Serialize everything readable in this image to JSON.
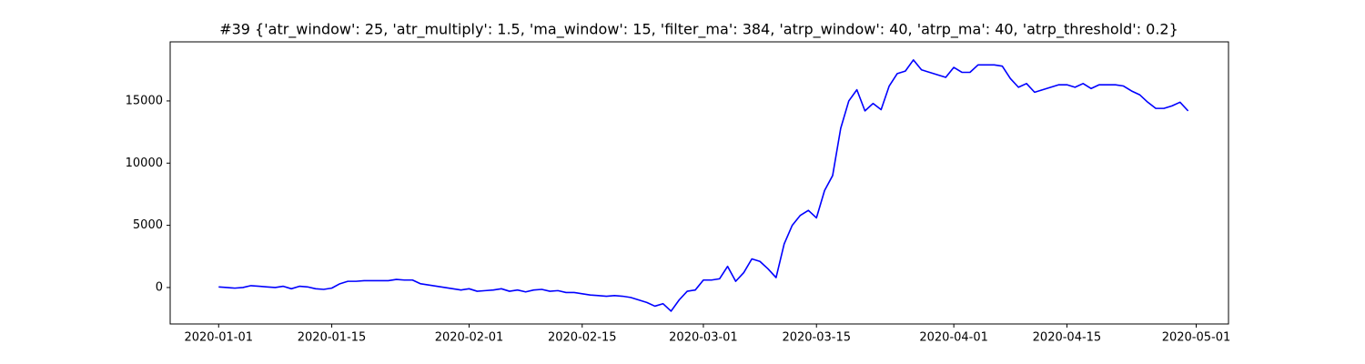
{
  "chart_data": {
    "type": "line",
    "title": "#39 {'atr_window': 25, 'atr_multiply': 1.5, 'ma_window': 15, 'filter_ma': 384, 'atrp_window': 40, 'atrp_ma': 40, 'atrp_threshold': 0.2}",
    "x": [
      "2020-01-01",
      "2020-01-02",
      "2020-01-03",
      "2020-01-04",
      "2020-01-05",
      "2020-01-06",
      "2020-01-07",
      "2020-01-08",
      "2020-01-09",
      "2020-01-10",
      "2020-01-11",
      "2020-01-12",
      "2020-01-13",
      "2020-01-14",
      "2020-01-15",
      "2020-01-16",
      "2020-01-17",
      "2020-01-18",
      "2020-01-19",
      "2020-01-20",
      "2020-01-21",
      "2020-01-22",
      "2020-01-23",
      "2020-01-24",
      "2020-01-25",
      "2020-01-26",
      "2020-01-27",
      "2020-01-28",
      "2020-01-29",
      "2020-01-30",
      "2020-01-31",
      "2020-02-01",
      "2020-02-02",
      "2020-02-03",
      "2020-02-04",
      "2020-02-05",
      "2020-02-06",
      "2020-02-07",
      "2020-02-08",
      "2020-02-09",
      "2020-02-10",
      "2020-02-11",
      "2020-02-12",
      "2020-02-13",
      "2020-02-14",
      "2020-02-15",
      "2020-02-16",
      "2020-02-17",
      "2020-02-18",
      "2020-02-19",
      "2020-02-20",
      "2020-02-21",
      "2020-02-22",
      "2020-02-23",
      "2020-02-24",
      "2020-02-25",
      "2020-02-26",
      "2020-02-27",
      "2020-02-28",
      "2020-02-29",
      "2020-03-01",
      "2020-03-02",
      "2020-03-03",
      "2020-03-04",
      "2020-03-05",
      "2020-03-06",
      "2020-03-07",
      "2020-03-08",
      "2020-03-09",
      "2020-03-10",
      "2020-03-11",
      "2020-03-12",
      "2020-03-13",
      "2020-03-14",
      "2020-03-15",
      "2020-03-16",
      "2020-03-17",
      "2020-03-18",
      "2020-03-19",
      "2020-03-20",
      "2020-03-21",
      "2020-03-22",
      "2020-03-23",
      "2020-03-24",
      "2020-03-25",
      "2020-03-26",
      "2020-03-27",
      "2020-03-28",
      "2020-03-29",
      "2020-03-30",
      "2020-03-31",
      "2020-04-01",
      "2020-04-02",
      "2020-04-03",
      "2020-04-04",
      "2020-04-05",
      "2020-04-06",
      "2020-04-07",
      "2020-04-08",
      "2020-04-09",
      "2020-04-10",
      "2020-04-11",
      "2020-04-12",
      "2020-04-13",
      "2020-04-14",
      "2020-04-15",
      "2020-04-16",
      "2020-04-17",
      "2020-04-18",
      "2020-04-19",
      "2020-04-20",
      "2020-04-21",
      "2020-04-22",
      "2020-04-23",
      "2020-04-24",
      "2020-04-25",
      "2020-04-26",
      "2020-04-27",
      "2020-04-28",
      "2020-04-29",
      "2020-04-30"
    ],
    "values": [
      50,
      0,
      -50,
      0,
      150,
      100,
      50,
      0,
      100,
      -100,
      100,
      50,
      -100,
      -150,
      -50,
      300,
      500,
      500,
      550,
      550,
      550,
      550,
      650,
      600,
      600,
      300,
      200,
      100,
      0,
      -100,
      -200,
      -100,
      -300,
      -250,
      -200,
      -100,
      -300,
      -200,
      -350,
      -200,
      -150,
      -300,
      -250,
      -400,
      -400,
      -500,
      -600,
      -650,
      -700,
      -650,
      -700,
      -800,
      -1000,
      -1200,
      -1500,
      -1300,
      -1900,
      -1000,
      -300,
      -200,
      600,
      600,
      700,
      1700,
      500,
      1200,
      2300,
      2100,
      1500,
      800,
      3500,
      5000,
      5800,
      6200,
      5600,
      7800,
      9000,
      12800,
      15000,
      15900,
      14200,
      14800,
      14300,
      16200,
      17200,
      17400,
      18300,
      17500,
      17300,
      17100,
      16900,
      17700,
      17300,
      17300,
      17900,
      17900,
      17900,
      17800,
      16800,
      16100,
      16400,
      15700,
      15900,
      16100,
      16300,
      16300,
      16100,
      16400,
      16000,
      16300,
      16300,
      16300,
      16200,
      15800,
      15500,
      14900,
      14400,
      14400,
      14600,
      14900,
      14200
    ],
    "color": "#0000ff",
    "xlim": [
      "2019-12-26",
      "2020-05-05"
    ],
    "xticks": [
      "2020-01-01",
      "2020-01-15",
      "2020-02-01",
      "2020-02-15",
      "2020-03-01",
      "2020-03-15",
      "2020-04-01",
      "2020-04-15",
      "2020-05-01"
    ],
    "ylim": [
      -2930,
      19750
    ],
    "yticks": [
      0,
      5000,
      10000,
      15000
    ]
  }
}
